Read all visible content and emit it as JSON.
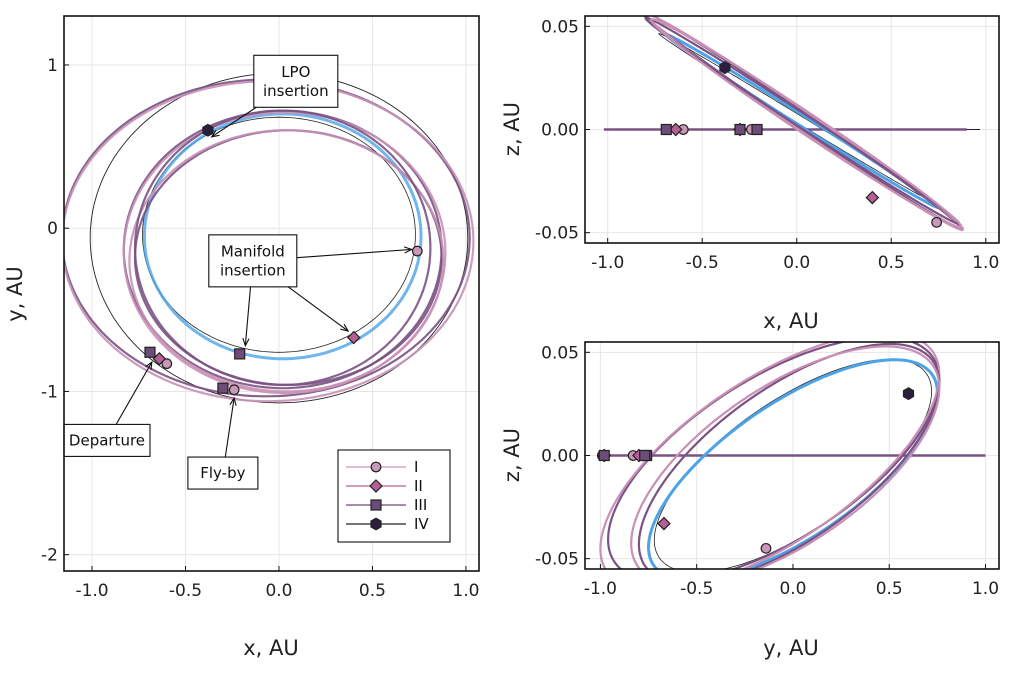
{
  "chart_data": [
    {
      "type": "line",
      "id": "xy",
      "xlabel": "x, AU",
      "ylabel": "y, AU",
      "xlim": [
        -1.15,
        1.07
      ],
      "ylim": [
        -2.1,
        1.3
      ],
      "xticks": [
        -1.0,
        -0.5,
        0.0,
        0.5,
        1.0
      ],
      "xticklabels": [
        "-1.0",
        "-0.5",
        "0.0",
        "0.5",
        "1.0"
      ],
      "yticks": [
        -2,
        -1,
        0,
        1
      ],
      "yticklabels": [
        "-2",
        "-1",
        "0",
        "1"
      ],
      "grid": true,
      "markers": [
        {
          "series": "I",
          "x": 0.74,
          "y": -0.14
        },
        {
          "series": "I",
          "x": -0.6,
          "y": -0.83
        },
        {
          "series": "I",
          "x": -0.24,
          "y": -0.99
        },
        {
          "series": "II",
          "x": 0.4,
          "y": -0.67
        },
        {
          "series": "II",
          "x": -0.64,
          "y": -0.8
        },
        {
          "series": "III",
          "x": -0.21,
          "y": -0.77
        },
        {
          "series": "III",
          "x": -0.69,
          "y": -0.76
        },
        {
          "series": "III",
          "x": -0.3,
          "y": -0.98
        },
        {
          "series": "IV",
          "x": -0.38,
          "y": 0.6
        }
      ],
      "annotations": [
        {
          "lines": [
            "LPO",
            "insertion"
          ],
          "box": [
            0.09,
            0.9
          ],
          "targets": [
            [
              -0.36,
              0.56
            ]
          ]
        },
        {
          "lines": [
            "Manifold",
            "insertion"
          ],
          "box": [
            -0.14,
            -0.2
          ],
          "targets": [
            [
              0.71,
              -0.13
            ],
            [
              -0.18,
              -0.72
            ],
            [
              0.37,
              -0.63
            ]
          ]
        },
        {
          "lines": [
            "Departure"
          ],
          "box": [
            -0.92,
            -1.3
          ],
          "targets": [
            [
              -0.68,
              -0.82
            ]
          ]
        },
        {
          "lines": [
            "Fly-by"
          ],
          "box": [
            -0.3,
            -1.5
          ],
          "targets": [
            [
              -0.24,
              -1.04
            ]
          ]
        }
      ],
      "legend": {
        "position": "bottom-right",
        "entries": [
          "I",
          "II",
          "III",
          "IV"
        ]
      }
    },
    {
      "type": "line",
      "id": "xz",
      "xlabel": "x, AU",
      "ylabel": "z, AU",
      "xlim": [
        -1.12,
        1.07
      ],
      "ylim": [
        -0.055,
        0.055
      ],
      "xticks": [
        -1.0,
        -0.5,
        0.0,
        0.5,
        1.0
      ],
      "xticklabels": [
        "-1.0",
        "-0.5",
        "0.0",
        "0.5",
        "1.0"
      ],
      "yticks": [
        -0.05,
        0.0,
        0.05
      ],
      "yticklabels": [
        "-0.05",
        "0.00",
        "0.05"
      ],
      "grid": true,
      "markers": [
        {
          "series": "I",
          "x": 0.74,
          "z": -0.045
        },
        {
          "series": "I",
          "x": -0.6,
          "z": 0.0
        },
        {
          "series": "I",
          "x": -0.24,
          "z": 0.0
        },
        {
          "series": "II",
          "x": 0.4,
          "z": -0.033
        },
        {
          "series": "II",
          "x": -0.64,
          "z": 0.0
        },
        {
          "series": "II",
          "x": -0.3,
          "z": 0.0
        },
        {
          "series": "III",
          "x": -0.21,
          "z": 0.0
        },
        {
          "series": "III",
          "x": -0.69,
          "z": 0.0
        },
        {
          "series": "III",
          "x": -0.3,
          "z": 0.0
        },
        {
          "series": "IV",
          "x": -0.38,
          "z": 0.03
        }
      ]
    },
    {
      "type": "line",
      "id": "yz",
      "xlabel": "y, AU",
      "ylabel": "z, AU",
      "xlim": [
        -1.08,
        1.07
      ],
      "ylim": [
        -0.055,
        0.055
      ],
      "xticks": [
        -1.0,
        -0.5,
        0.0,
        0.5,
        1.0
      ],
      "xticklabels": [
        "-1.0",
        "-0.5",
        "0.0",
        "0.5",
        "1.0"
      ],
      "yticks": [
        -0.05,
        0.0,
        0.05
      ],
      "yticklabels": [
        "-0.05",
        "0.00",
        "0.05"
      ],
      "grid": true,
      "markers": [
        {
          "series": "I",
          "y": -0.14,
          "z": -0.045
        },
        {
          "series": "I",
          "y": -0.83,
          "z": 0.0
        },
        {
          "series": "I",
          "y": -0.99,
          "z": 0.0
        },
        {
          "series": "II",
          "y": -0.67,
          "z": -0.033
        },
        {
          "series": "II",
          "y": -0.8,
          "z": 0.0
        },
        {
          "series": "II",
          "y": -0.98,
          "z": 0.0
        },
        {
          "series": "III",
          "y": -0.76,
          "z": 0.0
        },
        {
          "series": "III",
          "y": -0.77,
          "z": 0.0
        },
        {
          "series": "III",
          "y": -0.98,
          "z": 0.0
        },
        {
          "series": "IV",
          "y": 0.6,
          "z": 0.03
        }
      ]
    }
  ],
  "series_style": {
    "I": {
      "color": "#c998b8",
      "marker": "circle"
    },
    "II": {
      "color": "#b55f94",
      "marker": "diamond"
    },
    "III": {
      "color": "#6c4c78",
      "marker": "square"
    },
    "IV": {
      "color": "#2b1f40",
      "marker": "hexagon"
    },
    "path": "#7a5283",
    "lpo": "#4da3e8",
    "earth": "#222222"
  }
}
